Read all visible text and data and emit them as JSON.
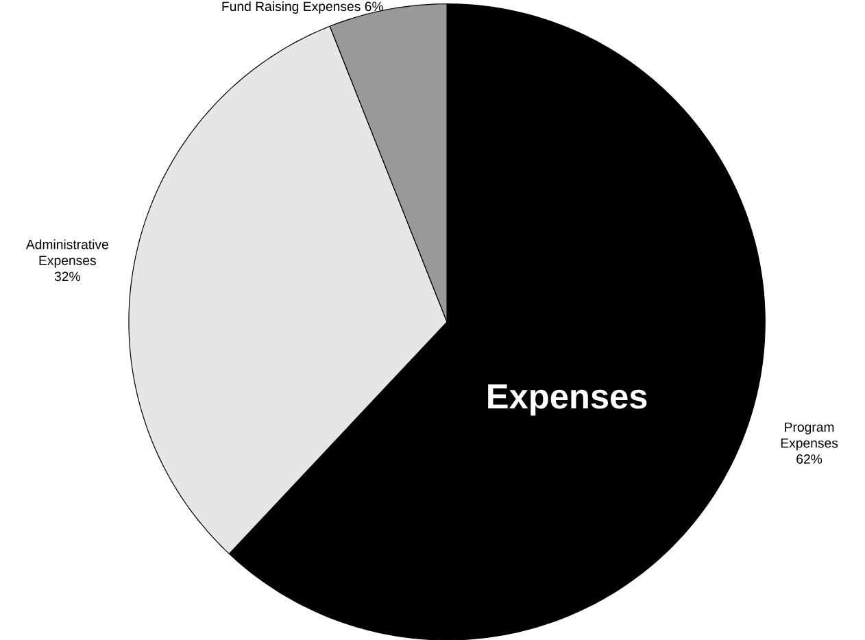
{
  "chart_data": {
    "type": "pie",
    "title": "Expenses",
    "categories": [
      "Program Expenses",
      "Administrative Expenses",
      "Fund Raising Expenses"
    ],
    "values": [
      62,
      32,
      6
    ],
    "value_labels": [
      "62%",
      "32%",
      "6%"
    ],
    "colors": [
      "#000000",
      "#e6e6e6",
      "#999999"
    ]
  }
}
